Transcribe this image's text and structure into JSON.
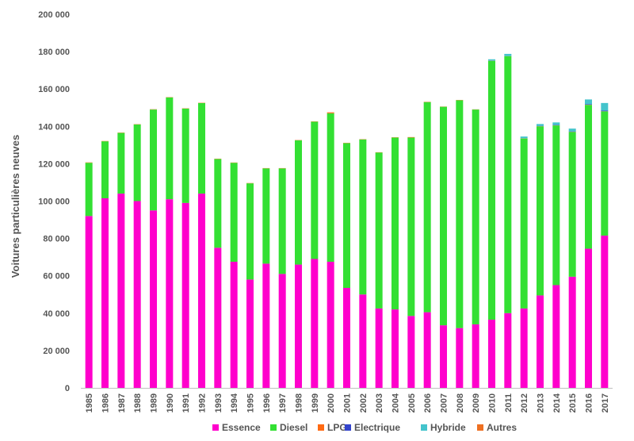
{
  "chart_data": {
    "type": "bar",
    "stacked": true,
    "ylabel": "Voitures particulières neuves",
    "ylim": [
      0,
      200000
    ],
    "yticks": [
      0,
      20000,
      40000,
      60000,
      80000,
      100000,
      120000,
      140000,
      160000,
      180000,
      200000
    ],
    "ytick_labels": [
      "0",
      "20 000",
      "40 000",
      "60 000",
      "80 000",
      "100 000",
      "120 000",
      "140 000",
      "160 000",
      "180 000",
      "200 000"
    ],
    "grid": false,
    "legend_position": "bottom",
    "categories": [
      "1985",
      "1986",
      "1987",
      "1988",
      "1989",
      "1990",
      "1991",
      "1992",
      "1993",
      "1994",
      "1995",
      "1996",
      "1997",
      "1998",
      "1999",
      "2000",
      "2001",
      "2002",
      "2003",
      "2004",
      "2005",
      "2006",
      "2007",
      "2008",
      "2009",
      "2010",
      "2011",
      "2012",
      "2013",
      "2014",
      "2015",
      "2016",
      "2017"
    ],
    "series": [
      {
        "name": "Essence",
        "color": "#ff00cc",
        "values": [
          92000,
          101500,
          104000,
          100000,
          95000,
          101000,
          99000,
          104000,
          75000,
          67500,
          58000,
          66500,
          61000,
          66000,
          69000,
          67500,
          53500,
          50000,
          42500,
          42000,
          38500,
          40500,
          33500,
          32000,
          34000,
          36500,
          40000,
          42500,
          49500,
          55000,
          59500,
          74500,
          81500
        ]
      },
      {
        "name": "Diesel",
        "color": "#33e033",
        "values": [
          28500,
          30500,
          32500,
          41000,
          54000,
          54500,
          50500,
          48500,
          47500,
          53000,
          51500,
          51000,
          56500,
          66500,
          73500,
          79500,
          77500,
          83000,
          83500,
          92000,
          95500,
          112500,
          117000,
          122000,
          115000,
          138500,
          137500,
          91000,
          90500,
          85500,
          77500,
          77000,
          66500
        ]
      },
      {
        "name": "LPG",
        "color": "#ff6a13",
        "values": [
          200,
          150,
          150,
          150,
          150,
          150,
          150,
          150,
          150,
          150,
          150,
          150,
          150,
          150,
          150,
          500,
          150,
          150,
          150,
          150,
          250,
          150,
          100,
          150,
          100,
          100,
          100,
          100,
          100,
          100,
          100,
          100,
          100
        ]
      },
      {
        "name": "Electrique",
        "color": "#3344cc",
        "values": [
          0,
          0,
          0,
          0,
          0,
          0,
          0,
          0,
          0,
          0,
          0,
          0,
          0,
          0,
          0,
          0,
          0,
          0,
          0,
          0,
          0,
          0,
          0,
          0,
          0,
          0,
          0,
          50,
          150,
          200,
          200,
          300,
          400
        ]
      },
      {
        "name": "Hybride",
        "color": "#44c4cc",
        "values": [
          0,
          0,
          0,
          0,
          0,
          0,
          0,
          0,
          0,
          0,
          0,
          0,
          0,
          0,
          0,
          0,
          0,
          0,
          0,
          0,
          0,
          0,
          0,
          0,
          0,
          800,
          1200,
          900,
          1000,
          1300,
          1500,
          2500,
          4000
        ]
      },
      {
        "name": "Autres",
        "color": "#ee7022",
        "values": [
          0,
          0,
          0,
          0,
          0,
          0,
          0,
          0,
          0,
          0,
          0,
          0,
          0,
          0,
          0,
          0,
          0,
          0,
          0,
          0,
          0,
          0,
          0,
          0,
          0,
          0,
          0,
          0,
          0,
          0,
          0,
          0,
          0
        ]
      }
    ]
  }
}
